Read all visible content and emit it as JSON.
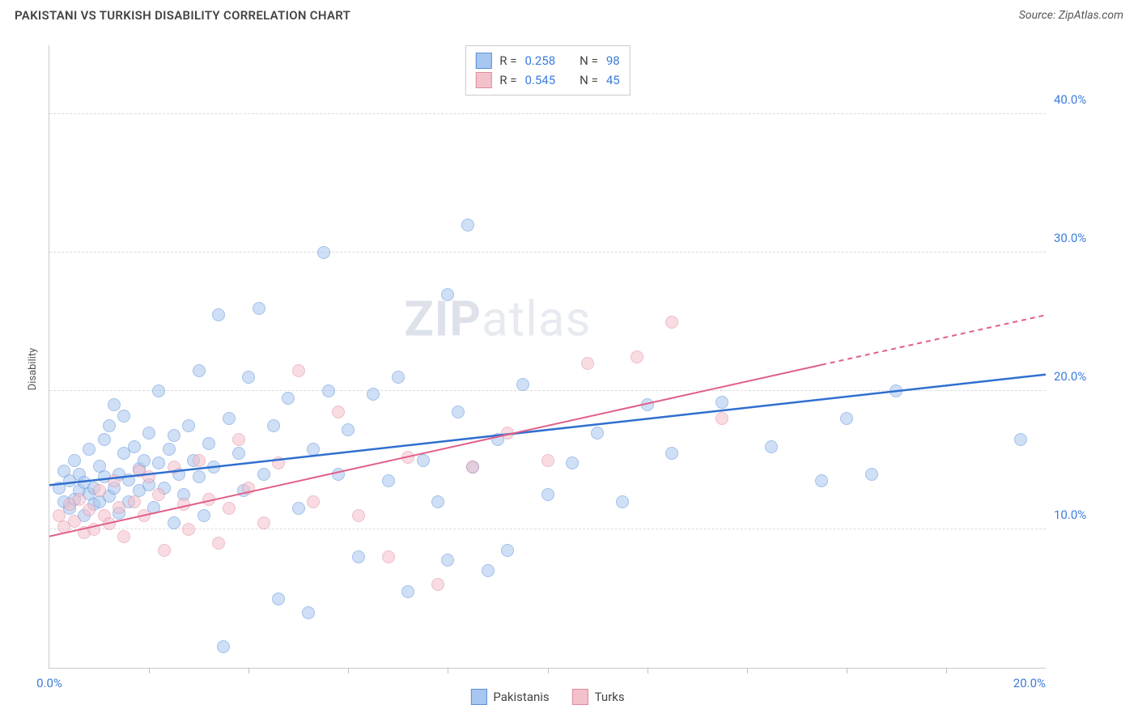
{
  "title": "PAKISTANI VS TURKISH DISABILITY CORRELATION CHART",
  "source": "Source: ZipAtlas.com",
  "ylabel": "Disability",
  "watermark_bold": "ZIP",
  "watermark_rest": "atlas",
  "chart": {
    "type": "scatter",
    "background_color": "#ffffff",
    "grid_color": "#dcdcdc",
    "axis_color": "#c9c9c9",
    "xlim": [
      0,
      20
    ],
    "ylim": [
      0,
      45
    ],
    "xtick_major": [
      0,
      20
    ],
    "xtick_minor": [
      2,
      4,
      6,
      8,
      10,
      12,
      14,
      16,
      18
    ],
    "ytick_major": [
      10,
      20,
      30,
      40
    ],
    "xtick_labels": [
      "0.0%",
      "20.0%"
    ],
    "ytick_labels": [
      "10.0%",
      "20.0%",
      "30.0%",
      "40.0%"
    ],
    "tick_label_color": "#3b7ddd",
    "tick_label_fontsize": 15,
    "point_radius": 8,
    "point_opacity": 0.55,
    "point_border_width": 1.2,
    "series": [
      {
        "name": "Pakistanis",
        "fill_color": "#a7c6f0",
        "border_color": "#5b8fd6",
        "trend_color": "#2f6fd0",
        "trend_width": 2.5,
        "R": 0.258,
        "N": 98,
        "trend": {
          "x1": 0,
          "y1": 13.2,
          "x2": 20,
          "y2": 21.2,
          "dashed_from_x": null
        },
        "points": [
          [
            0.2,
            13.0
          ],
          [
            0.3,
            12.0
          ],
          [
            0.3,
            14.2
          ],
          [
            0.4,
            11.5
          ],
          [
            0.4,
            13.5
          ],
          [
            0.5,
            12.2
          ],
          [
            0.5,
            15.0
          ],
          [
            0.6,
            12.8
          ],
          [
            0.6,
            14.0
          ],
          [
            0.7,
            11.0
          ],
          [
            0.7,
            13.4
          ],
          [
            0.8,
            12.6
          ],
          [
            0.8,
            15.8
          ],
          [
            0.9,
            13.0
          ],
          [
            0.9,
            11.8
          ],
          [
            1.0,
            14.6
          ],
          [
            1.0,
            12.0
          ],
          [
            1.1,
            16.5
          ],
          [
            1.1,
            13.8
          ],
          [
            1.2,
            12.4
          ],
          [
            1.2,
            17.5
          ],
          [
            1.3,
            13.0
          ],
          [
            1.3,
            19.0
          ],
          [
            1.4,
            14.0
          ],
          [
            1.4,
            11.2
          ],
          [
            1.5,
            15.5
          ],
          [
            1.5,
            18.2
          ],
          [
            1.6,
            13.6
          ],
          [
            1.6,
            12.0
          ],
          [
            1.7,
            16.0
          ],
          [
            1.8,
            14.4
          ],
          [
            1.8,
            12.8
          ],
          [
            1.9,
            15.0
          ],
          [
            2.0,
            13.2
          ],
          [
            2.0,
            17.0
          ],
          [
            2.1,
            11.6
          ],
          [
            2.2,
            14.8
          ],
          [
            2.2,
            20.0
          ],
          [
            2.3,
            13.0
          ],
          [
            2.4,
            15.8
          ],
          [
            2.5,
            10.5
          ],
          [
            2.5,
            16.8
          ],
          [
            2.6,
            14.0
          ],
          [
            2.7,
            12.5
          ],
          [
            2.8,
            17.5
          ],
          [
            2.9,
            15.0
          ],
          [
            3.0,
            13.8
          ],
          [
            3.0,
            21.5
          ],
          [
            3.1,
            11.0
          ],
          [
            3.2,
            16.2
          ],
          [
            3.3,
            14.5
          ],
          [
            3.4,
            25.5
          ],
          [
            3.5,
            1.5
          ],
          [
            3.6,
            18.0
          ],
          [
            3.8,
            15.5
          ],
          [
            3.9,
            12.8
          ],
          [
            4.0,
            21.0
          ],
          [
            4.2,
            26.0
          ],
          [
            4.3,
            14.0
          ],
          [
            4.5,
            17.5
          ],
          [
            4.6,
            5.0
          ],
          [
            4.8,
            19.5
          ],
          [
            5.0,
            11.5
          ],
          [
            5.2,
            4.0
          ],
          [
            5.3,
            15.8
          ],
          [
            5.5,
            30.0
          ],
          [
            5.6,
            20.0
          ],
          [
            5.8,
            14.0
          ],
          [
            6.0,
            17.2
          ],
          [
            6.2,
            8.0
          ],
          [
            6.5,
            19.8
          ],
          [
            6.8,
            13.5
          ],
          [
            7.0,
            21.0
          ],
          [
            7.2,
            5.5
          ],
          [
            7.5,
            15.0
          ],
          [
            7.8,
            12.0
          ],
          [
            8.0,
            27.0
          ],
          [
            8.0,
            7.8
          ],
          [
            8.2,
            18.5
          ],
          [
            8.4,
            32.0
          ],
          [
            8.5,
            14.5
          ],
          [
            8.8,
            7.0
          ],
          [
            9.0,
            16.5
          ],
          [
            9.2,
            8.5
          ],
          [
            9.5,
            20.5
          ],
          [
            10.0,
            12.5
          ],
          [
            10.5,
            14.8
          ],
          [
            11.0,
            17.0
          ],
          [
            11.5,
            12.0
          ],
          [
            12.0,
            19.0
          ],
          [
            12.5,
            15.5
          ],
          [
            13.5,
            19.2
          ],
          [
            14.5,
            16.0
          ],
          [
            15.5,
            13.5
          ],
          [
            16.0,
            18.0
          ],
          [
            16.5,
            14.0
          ],
          [
            17.0,
            20.0
          ],
          [
            19.5,
            16.5
          ]
        ]
      },
      {
        "name": "Turks",
        "fill_color": "#f3c1cc",
        "border_color": "#e08aa0",
        "trend_color": "#e06088",
        "trend_width": 2,
        "R": 0.545,
        "N": 45,
        "trend": {
          "x1": 0,
          "y1": 9.5,
          "x2": 20,
          "y2": 25.5,
          "dashed_from_x": 15.5
        },
        "points": [
          [
            0.2,
            11.0
          ],
          [
            0.3,
            10.2
          ],
          [
            0.4,
            11.8
          ],
          [
            0.5,
            10.6
          ],
          [
            0.6,
            12.2
          ],
          [
            0.7,
            9.8
          ],
          [
            0.8,
            11.4
          ],
          [
            0.9,
            10.0
          ],
          [
            1.0,
            12.8
          ],
          [
            1.1,
            11.0
          ],
          [
            1.2,
            10.4
          ],
          [
            1.3,
            13.5
          ],
          [
            1.4,
            11.6
          ],
          [
            1.5,
            9.5
          ],
          [
            1.7,
            12.0
          ],
          [
            1.8,
            14.2
          ],
          [
            1.9,
            11.0
          ],
          [
            2.0,
            13.8
          ],
          [
            2.2,
            12.5
          ],
          [
            2.3,
            8.5
          ],
          [
            2.5,
            14.5
          ],
          [
            2.7,
            11.8
          ],
          [
            2.8,
            10.0
          ],
          [
            3.0,
            15.0
          ],
          [
            3.2,
            12.2
          ],
          [
            3.4,
            9.0
          ],
          [
            3.6,
            11.5
          ],
          [
            3.8,
            16.5
          ],
          [
            4.0,
            13.0
          ],
          [
            4.3,
            10.5
          ],
          [
            4.6,
            14.8
          ],
          [
            5.0,
            21.5
          ],
          [
            5.3,
            12.0
          ],
          [
            5.8,
            18.5
          ],
          [
            6.2,
            11.0
          ],
          [
            6.8,
            8.0
          ],
          [
            7.2,
            15.2
          ],
          [
            7.8,
            6.0
          ],
          [
            8.5,
            14.5
          ],
          [
            9.2,
            17.0
          ],
          [
            10.0,
            15.0
          ],
          [
            10.8,
            22.0
          ],
          [
            11.8,
            22.5
          ],
          [
            12.5,
            25.0
          ],
          [
            13.5,
            18.0
          ]
        ]
      }
    ]
  },
  "legend_top": {
    "r_label": "R =",
    "n_label": "N ="
  },
  "legend_bottom_labels": [
    "Pakistanis",
    "Turks"
  ]
}
